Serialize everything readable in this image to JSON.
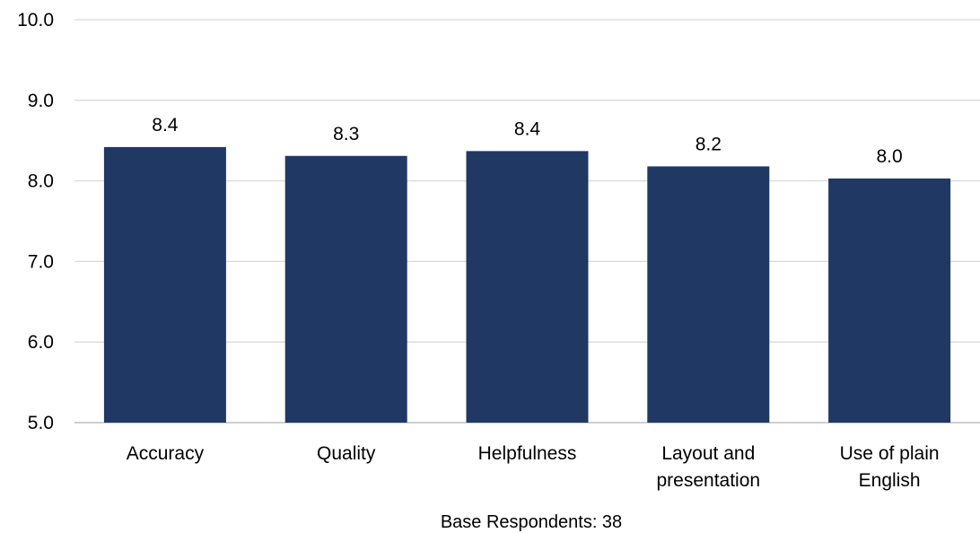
{
  "chart_data": {
    "type": "bar",
    "categories": [
      [
        "Accuracy"
      ],
      [
        "Quality"
      ],
      [
        "Helpfulness"
      ],
      [
        "Layout and",
        "presentation"
      ],
      [
        "Use of plain",
        "English"
      ]
    ],
    "values": [
      8.42,
      8.31,
      8.37,
      8.18,
      8.03
    ],
    "data_labels": [
      "8.4",
      "8.3",
      "8.4",
      "8.2",
      "8.0"
    ],
    "ylim": [
      5.0,
      10.0
    ],
    "yticks": [
      "5.0",
      "6.0",
      "7.0",
      "8.0",
      "9.0",
      "10.0"
    ],
    "grid": true,
    "bar_color": "#203864",
    "note": "Base Respondents: 38"
  }
}
